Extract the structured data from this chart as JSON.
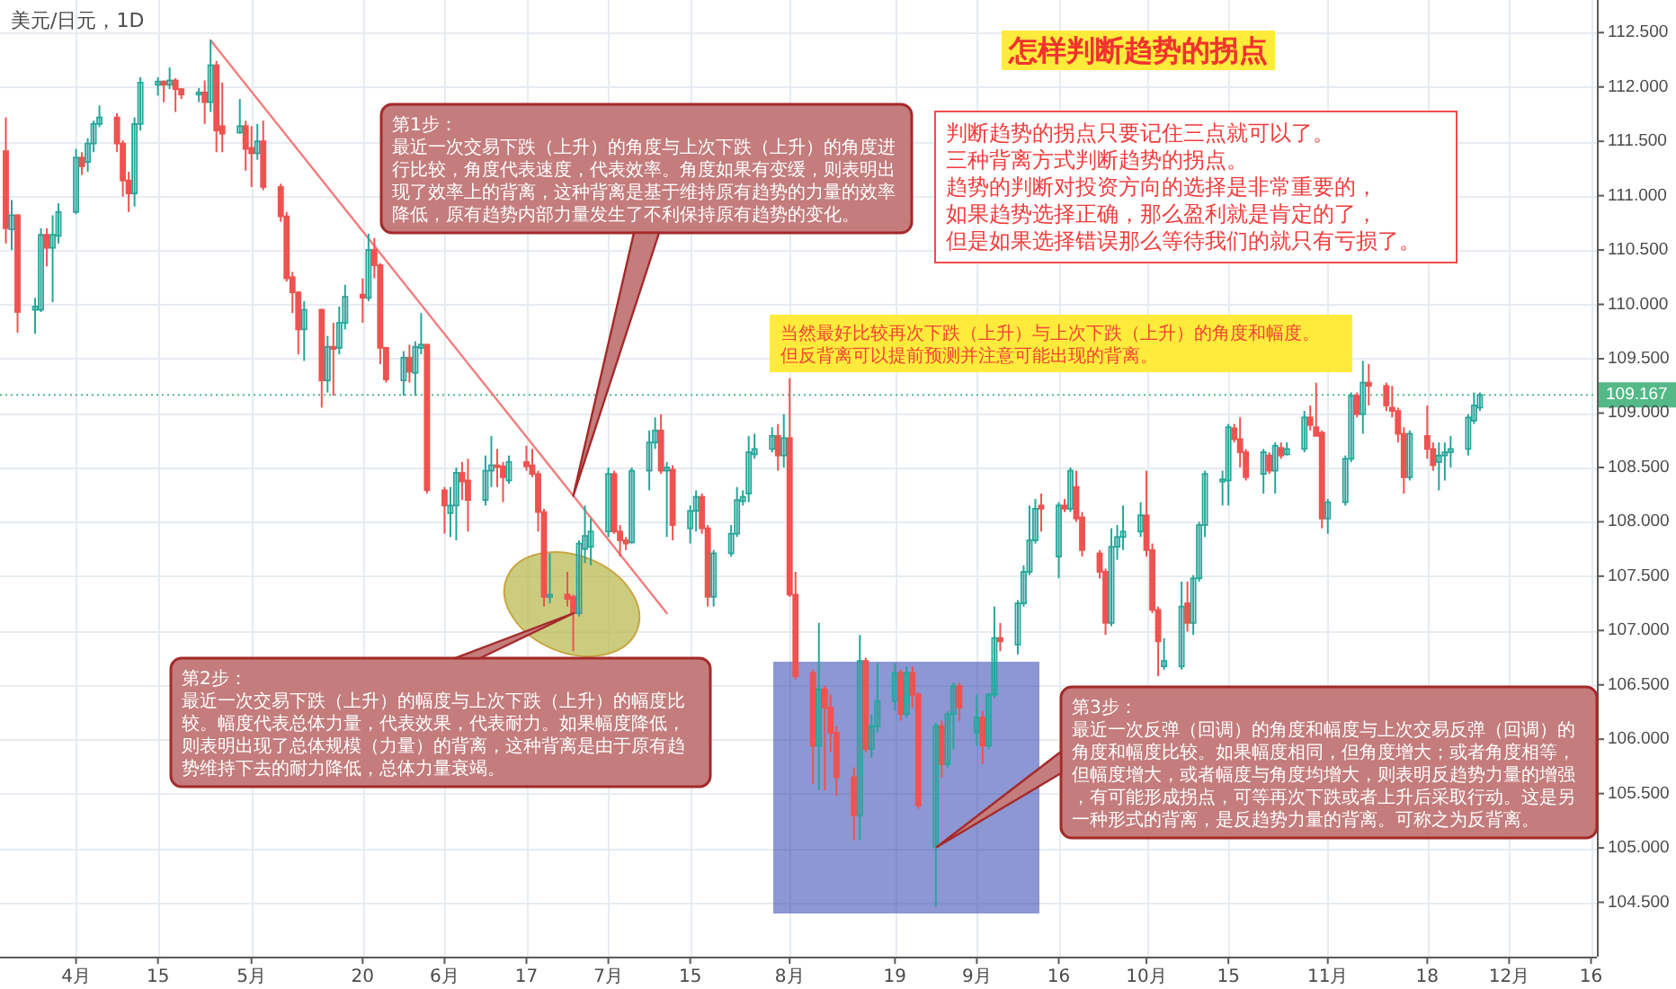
{
  "chart_data": {
    "type": "candlestick",
    "title": "怎样判断趋势的拐点",
    "subtitle": "美元/日元，1D",
    "x": [
      "--03-20",
      "--03-21",
      "--03-22",
      "--03-25",
      "--03-26",
      "--03-27",
      "--03-28",
      "--03-29",
      "--04-01",
      "--04-02",
      "--04-03",
      "--04-04",
      "--04-05",
      "--04-08",
      "--04-09",
      "--04-10",
      "--04-11",
      "--04-12",
      "--04-15",
      "--04-16",
      "--04-17",
      "--04-18",
      "--04-19",
      "--04-22",
      "--04-23",
      "--04-24",
      "--04-25",
      "--04-26",
      "--04-29",
      "--04-30",
      "--05-01",
      "--05-02",
      "--05-03",
      "--05-06",
      "--05-07",
      "--05-08",
      "--05-09",
      "--05-10",
      "--05-13",
      "--05-14",
      "--05-15",
      "--05-16",
      "--05-17",
      "--05-20",
      "--05-21",
      "--05-22",
      "--05-23",
      "--05-24",
      "--05-27",
      "--05-28",
      "--05-29",
      "--05-30",
      "--05-31",
      "--06-03",
      "--06-04",
      "--06-05",
      "--06-06",
      "--06-07",
      "--06-10",
      "--06-11",
      "--06-12",
      "--06-13",
      "--06-14",
      "--06-17",
      "--06-18",
      "--06-19",
      "--06-20",
      "--06-21",
      "--06-24",
      "--06-25",
      "--06-26",
      "--06-27",
      "--06-28",
      "--07-01",
      "--07-02",
      "--07-03",
      "--07-04",
      "--07-05",
      "--07-08",
      "--07-09",
      "--07-10",
      "--07-11",
      "--07-12",
      "--07-15",
      "--07-16",
      "--07-17",
      "--07-18",
      "--07-19",
      "--07-22",
      "--07-23",
      "--07-24",
      "--07-25",
      "--07-26",
      "--07-29",
      "--07-30",
      "--07-31",
      "--08-01",
      "--08-02",
      "--08-05",
      "--08-06",
      "--08-07",
      "--08-08",
      "--08-09",
      "--08-12",
      "--08-13",
      "--08-14",
      "--08-15",
      "--08-16",
      "--08-19",
      "--08-20",
      "--08-21",
      "--08-22",
      "--08-23",
      "--08-26",
      "--08-27",
      "--08-28",
      "--08-29",
      "--08-30",
      "--09-02",
      "--09-03",
      "--09-04",
      "--09-05",
      "--09-06",
      "--09-09",
      "--09-10",
      "--09-11",
      "--09-12",
      "--09-13",
      "--09-16",
      "--09-17",
      "--09-18",
      "--09-19",
      "--09-20",
      "--09-23",
      "--09-24",
      "--09-25",
      "--09-26",
      "--09-27",
      "--09-30",
      "--10-01",
      "--10-02",
      "--10-03",
      "--10-04",
      "--10-07",
      "--10-08",
      "--10-09",
      "--10-10",
      "--10-11",
      "--10-14",
      "--10-15",
      "--10-16",
      "--10-17",
      "--10-18",
      "--10-21",
      "--10-22",
      "--10-23",
      "--10-24",
      "--10-25",
      "--10-28",
      "--10-29",
      "--10-30",
      "--10-31",
      "--11-01",
      "--11-04",
      "--11-05",
      "--11-06",
      "--11-07",
      "--11-08",
      "--11-11",
      "--11-12",
      "--11-13",
      "--11-14",
      "--11-15",
      "--11-18",
      "--11-19",
      "--11-20",
      "--11-21",
      "--11-22",
      "--11-25",
      "--11-26",
      "--11-27"
    ],
    "ohlc": [
      [
        111.41,
        111.72,
        110.56,
        110.7
      ],
      [
        110.69,
        110.96,
        110.5,
        110.82
      ],
      [
        110.82,
        110.83,
        109.74,
        109.93
      ],
      [
        109.95,
        110.06,
        109.73,
        109.98
      ],
      [
        109.95,
        110.7,
        109.93,
        110.64
      ],
      [
        110.64,
        110.7,
        110.35,
        110.52
      ],
      [
        110.52,
        110.82,
        110.02,
        110.64
      ],
      [
        110.63,
        110.93,
        110.56,
        110.85
      ],
      [
        110.85,
        111.43,
        110.83,
        111.35
      ],
      [
        111.35,
        111.4,
        111.19,
        111.27
      ],
      [
        111.31,
        111.53,
        111.22,
        111.48
      ],
      [
        111.48,
        111.69,
        111.4,
        111.66
      ],
      [
        111.66,
        111.83,
        111.63,
        111.72
      ],
      [
        111.72,
        111.76,
        111.4,
        111.48
      ],
      [
        111.48,
        111.51,
        110.99,
        111.14
      ],
      [
        111.14,
        111.22,
        110.85,
        111.02
      ],
      [
        111.02,
        111.72,
        110.9,
        111.66
      ],
      [
        111.66,
        112.09,
        111.6,
        112.04
      ],
      [
        112.02,
        112.09,
        111.92,
        112.05
      ],
      [
        112.05,
        112.06,
        111.86,
        112.02
      ],
      [
        112.02,
        112.18,
        111.98,
        112.06
      ],
      [
        112.06,
        112.08,
        111.77,
        111.98
      ],
      [
        111.98,
        111.99,
        111.89,
        111.93
      ],
      [
        111.93,
        111.99,
        111.86,
        111.95
      ],
      [
        111.95,
        112.06,
        111.66,
        111.86
      ],
      [
        111.86,
        112.43,
        111.77,
        112.2
      ],
      [
        112.2,
        112.24,
        111.4,
        111.6
      ],
      [
        111.64,
        112.04,
        111.4,
        111.57
      ],
      [
        111.58,
        111.89,
        111.57,
        111.64
      ],
      [
        111.64,
        111.69,
        111.23,
        111.43
      ],
      [
        111.44,
        111.64,
        111.08,
        111.39
      ],
      [
        111.39,
        111.66,
        111.33,
        111.5
      ],
      [
        111.5,
        111.69,
        111.05,
        111.08
      ],
      [
        111.08,
        111.11,
        110.76,
        110.81
      ],
      [
        110.81,
        110.85,
        110.21,
        110.24
      ],
      [
        110.25,
        110.3,
        109.92,
        110.11
      ],
      [
        110.11,
        110.12,
        109.54,
        109.77
      ],
      [
        109.77,
        110.03,
        109.48,
        109.95
      ],
      [
        109.95,
        109.96,
        109.05,
        109.3
      ],
      [
        109.3,
        109.71,
        109.19,
        109.61
      ],
      [
        109.61,
        109.83,
        109.16,
        109.59
      ],
      [
        109.6,
        109.98,
        109.54,
        109.83
      ],
      [
        109.83,
        110.18,
        109.77,
        110.07
      ],
      [
        110.09,
        110.24,
        109.83,
        110.06
      ],
      [
        110.06,
        110.65,
        110.03,
        110.5
      ],
      [
        110.5,
        110.61,
        110.24,
        110.36
      ],
      [
        110.36,
        110.38,
        109.45,
        109.6
      ],
      [
        109.6,
        109.61,
        109.28,
        109.31
      ],
      [
        109.3,
        109.57,
        109.16,
        109.51
      ],
      [
        109.51,
        109.63,
        109.28,
        109.38
      ],
      [
        109.37,
        109.66,
        109.16,
        109.61
      ],
      [
        109.6,
        109.92,
        109.54,
        109.63
      ],
      [
        109.63,
        109.63,
        108.26,
        108.29
      ],
      [
        108.29,
        108.32,
        107.89,
        108.15
      ],
      [
        108.08,
        108.32,
        107.86,
        108.15
      ],
      [
        108.15,
        108.5,
        107.83,
        108.45
      ],
      [
        108.45,
        108.55,
        108.2,
        108.37
      ],
      [
        108.38,
        108.58,
        107.91,
        108.2
      ],
      [
        108.2,
        108.61,
        108.15,
        108.47
      ],
      [
        108.47,
        108.79,
        108.32,
        108.52
      ],
      [
        108.52,
        108.67,
        108.32,
        108.51
      ],
      [
        108.51,
        108.55,
        108.18,
        108.41
      ],
      [
        108.38,
        108.61,
        108.35,
        108.55
      ],
      [
        108.55,
        108.7,
        108.47,
        108.51
      ],
      [
        108.52,
        108.67,
        108.41,
        108.44
      ],
      [
        108.44,
        108.47,
        107.91,
        108.09
      ],
      [
        108.09,
        108.12,
        107.22,
        107.31
      ],
      [
        107.31,
        107.71,
        107.25,
        107.33
      ],
      [
        107.33,
        107.54,
        107.22,
        107.29
      ],
      [
        107.31,
        107.33,
        106.81,
        107.16
      ],
      [
        107.16,
        107.83,
        107.13,
        107.8
      ],
      [
        107.75,
        108.15,
        107.62,
        107.87
      ],
      [
        107.77,
        108.03,
        107.6,
        107.91
      ],
      [
        107.91,
        108.5,
        107.86,
        108.44
      ],
      [
        108.44,
        108.47,
        107.89,
        107.91
      ],
      [
        107.91,
        107.97,
        107.68,
        107.83
      ],
      [
        107.83,
        107.86,
        107.74,
        107.8
      ],
      [
        107.81,
        108.5,
        107.8,
        108.47
      ],
      [
        108.47,
        108.84,
        108.29,
        108.73
      ],
      [
        108.73,
        108.96,
        108.67,
        108.84
      ],
      [
        108.84,
        108.99,
        108.44,
        108.47
      ],
      [
        108.47,
        108.55,
        107.86,
        108.5
      ],
      [
        108.48,
        108.52,
        107.83,
        107.97
      ],
      [
        107.94,
        108.15,
        107.8,
        108.1
      ],
      [
        108.1,
        108.29,
        107.91,
        108.23
      ],
      [
        108.23,
        108.26,
        107.89,
        107.94
      ],
      [
        107.94,
        107.97,
        107.22,
        107.31
      ],
      [
        107.31,
        107.74,
        107.22,
        107.71
      ],
      [
        107.71,
        107.97,
        107.68,
        107.89
      ],
      [
        107.89,
        108.32,
        107.86,
        108.2
      ],
      [
        108.19,
        108.29,
        108.15,
        108.23
      ],
      [
        108.26,
        108.79,
        108.18,
        108.64
      ],
      [
        108.62,
        108.81,
        108.58,
        108.67
      ],
      [
        108.67,
        108.87,
        108.64,
        108.79
      ],
      [
        108.79,
        108.9,
        108.47,
        108.61
      ],
      [
        108.61,
        108.99,
        108.5,
        108.77
      ],
      [
        108.77,
        109.32,
        107.31,
        107.33
      ],
      [
        107.33,
        107.54,
        106.55,
        106.58
      ],
      [
        106.61,
        106.64,
        105.59,
        105.94
      ],
      [
        105.94,
        107.07,
        105.53,
        106.46
      ],
      [
        106.46,
        106.49,
        105.53,
        106.29
      ],
      [
        106.29,
        106.41,
        105.88,
        106.06
      ],
      [
        106.06,
        106.12,
        105.48,
        105.65
      ],
      [
        105.65,
        105.74,
        105.07,
        105.3
      ],
      [
        105.3,
        106.96,
        105.07,
        106.72
      ],
      [
        106.72,
        106.75,
        105.88,
        105.91
      ],
      [
        105.91,
        106.23,
        105.83,
        106.12
      ],
      [
        106.12,
        106.7,
        106.06,
        106.35
      ],
      [
        106.35,
        106.7,
        106.26,
        106.61
      ],
      [
        106.61,
        106.64,
        106.17,
        106.23
      ],
      [
        106.23,
        106.67,
        106.2,
        106.61
      ],
      [
        106.61,
        106.67,
        106.29,
        106.41
      ],
      [
        106.41,
        106.43,
        105.36,
        105.39
      ],
      [
        105.01,
        106.15,
        104.46,
        106.12
      ],
      [
        106.12,
        106.17,
        105.65,
        105.77
      ],
      [
        105.77,
        106.26,
        105.74,
        106.23
      ],
      [
        106.23,
        106.52,
        105.91,
        106.49
      ],
      [
        106.49,
        106.52,
        106.17,
        106.29
      ],
      [
        106.06,
        106.41,
        105.94,
        106.2
      ],
      [
        106.2,
        106.26,
        105.77,
        105.94
      ],
      [
        105.94,
        106.43,
        105.91,
        106.41
      ],
      [
        106.41,
        107.22,
        106.38,
        106.93
      ],
      [
        106.93,
        107.07,
        106.81,
        106.9
      ],
      [
        106.87,
        107.28,
        106.78,
        107.25
      ],
      [
        107.25,
        107.6,
        107.22,
        107.54
      ],
      [
        107.54,
        108.15,
        107.51,
        107.83
      ],
      [
        107.83,
        108.21,
        107.8,
        108.12
      ],
      [
        108.15,
        108.26,
        107.91,
        108.12
      ],
      [
        107.68,
        108.18,
        107.48,
        108.15
      ],
      [
        108.15,
        108.21,
        108.09,
        108.12
      ],
      [
        108.12,
        108.5,
        108.09,
        108.47
      ],
      [
        108.32,
        108.47,
        108.0,
        108.03
      ],
      [
        108.04,
        108.09,
        107.68,
        107.74
      ],
      [
        107.71,
        107.74,
        107.48,
        107.54
      ],
      [
        107.54,
        107.57,
        106.96,
        107.07
      ],
      [
        107.07,
        107.94,
        107.04,
        107.77
      ],
      [
        107.77,
        107.97,
        107.65,
        107.86
      ],
      [
        107.86,
        108.15,
        107.74,
        107.91
      ],
      [
        107.91,
        108.18,
        107.86,
        108.06
      ],
      [
        108.06,
        108.47,
        107.68,
        107.74
      ],
      [
        107.74,
        107.8,
        107.16,
        107.19
      ],
      [
        107.19,
        107.22,
        106.58,
        106.9
      ],
      [
        106.67,
        106.93,
        106.64,
        106.72
      ],
      [
        106.67,
        107.45,
        106.64,
        107.22
      ],
      [
        107.25,
        107.45,
        106.99,
        107.07
      ],
      [
        107.07,
        107.51,
        106.96,
        107.48
      ],
      [
        107.48,
        108.0,
        107.45,
        107.97
      ],
      [
        107.97,
        108.47,
        107.86,
        108.44
      ],
      [
        108.37,
        108.47,
        108.15,
        108.39
      ],
      [
        108.38,
        108.9,
        108.15,
        108.87
      ],
      [
        108.86,
        108.9,
        108.73,
        108.76
      ],
      [
        108.76,
        108.96,
        108.5,
        108.64
      ],
      [
        108.64,
        108.67,
        108.38,
        108.41
      ],
      [
        108.44,
        108.67,
        108.26,
        108.64
      ],
      [
        108.61,
        108.64,
        108.44,
        108.47
      ],
      [
        108.47,
        108.73,
        108.26,
        108.7
      ],
      [
        108.68,
        108.73,
        108.58,
        108.61
      ],
      [
        108.62,
        108.73,
        108.61,
        108.67
      ],
      [
        108.67,
        109.02,
        108.64,
        108.96
      ],
      [
        108.96,
        109.07,
        108.84,
        108.89
      ],
      [
        108.87,
        109.28,
        108.79,
        108.79
      ],
      [
        108.82,
        108.84,
        107.94,
        108.03
      ],
      [
        108.03,
        108.21,
        107.89,
        108.18
      ],
      [
        108.18,
        108.61,
        108.15,
        108.58
      ],
      [
        108.58,
        109.19,
        108.55,
        109.16
      ],
      [
        109.16,
        109.19,
        108.96,
        108.99
      ],
      [
        108.99,
        109.48,
        108.81,
        109.28
      ],
      [
        109.28,
        109.45,
        109.07,
        109.25
      ],
      [
        109.25,
        109.28,
        109.02,
        109.07
      ],
      [
        109.05,
        109.25,
        108.96,
        109.02
      ],
      [
        109.02,
        109.05,
        108.73,
        108.81
      ],
      [
        108.81,
        108.87,
        108.26,
        108.41
      ],
      [
        108.41,
        108.84,
        108.38,
        108.81
      ],
      [
        108.79,
        109.07,
        108.58,
        108.67
      ],
      [
        108.67,
        108.73,
        108.47,
        108.52
      ],
      [
        108.55,
        108.73,
        108.29,
        108.61
      ],
      [
        108.61,
        108.73,
        108.38,
        108.64
      ],
      [
        108.64,
        108.79,
        108.5,
        108.67
      ],
      [
        108.67,
        108.99,
        108.61,
        108.96
      ],
      [
        108.93,
        109.19,
        108.9,
        109.07
      ],
      [
        109.05,
        109.19,
        109.02,
        109.167
      ]
    ],
    "colors": [
      "#ef5350",
      "#26a69a",
      "#ef5350",
      "#26a69a",
      "#26a69a",
      "#ef5350",
      "#26a69a",
      "#26a69a",
      "#26a69a",
      "#ef5350",
      "#26a69a",
      "#26a69a",
      "#26a69a",
      "#ef5350",
      "#ef5350",
      "#ef5350",
      "#26a69a",
      "#26a69a",
      "#26a69a",
      "#ef5350",
      "#26a69a",
      "#ef5350",
      "#ef5350",
      "#26a69a",
      "#ef5350",
      "#26a69a",
      "#ef5350",
      "#ef5350",
      "#26a69a",
      "#ef5350",
      "#ef5350",
      "#26a69a",
      "#ef5350",
      "#ef5350",
      "#ef5350",
      "#ef5350",
      "#ef5350",
      "#26a69a",
      "#ef5350",
      "#26a69a",
      "#ef5350",
      "#26a69a",
      "#26a69a",
      "#ef5350",
      "#26a69a",
      "#ef5350",
      "#ef5350",
      "#ef5350",
      "#26a69a",
      "#ef5350",
      "#26a69a",
      "#26a69a",
      "#ef5350",
      "#ef5350",
      "#26a69a",
      "#26a69a",
      "#ef5350",
      "#ef5350",
      "#26a69a",
      "#26a69a",
      "#ef5350",
      "#ef5350",
      "#26a69a",
      "#ef5350",
      "#ef5350",
      "#ef5350",
      "#ef5350",
      "#26a69a",
      "#ef5350",
      "#ef5350",
      "#26a69a",
      "#26a69a",
      "#26a69a",
      "#26a69a",
      "#ef5350",
      "#ef5350",
      "#ef5350",
      "#26a69a",
      "#26a69a",
      "#26a69a",
      "#ef5350",
      "#26a69a",
      "#ef5350",
      "#26a69a",
      "#26a69a",
      "#ef5350",
      "#ef5350",
      "#26a69a",
      "#26a69a",
      "#26a69a",
      "#26a69a",
      "#26a69a",
      "#26a69a",
      "#26a69a",
      "#ef5350",
      "#26a69a",
      "#ef5350",
      "#ef5350",
      "#ef5350",
      "#26a69a",
      "#ef5350",
      "#ef5350",
      "#ef5350",
      "#ef5350",
      "#26a69a",
      "#ef5350",
      "#26a69a",
      "#26a69a",
      "#26a69a",
      "#ef5350",
      "#26a69a",
      "#ef5350",
      "#ef5350",
      "#26a69a",
      "#ef5350",
      "#26a69a",
      "#26a69a",
      "#ef5350",
      "#26a69a",
      "#ef5350",
      "#26a69a",
      "#26a69a",
      "#ef5350",
      "#26a69a",
      "#26a69a",
      "#26a69a",
      "#26a69a",
      "#ef5350",
      "#26a69a",
      "#ef5350",
      "#26a69a",
      "#ef5350",
      "#ef5350",
      "#ef5350",
      "#ef5350",
      "#26a69a",
      "#26a69a",
      "#26a69a",
      "#26a69a",
      "#ef5350",
      "#ef5350",
      "#ef5350",
      "#26a69a",
      "#26a69a",
      "#ef5350",
      "#26a69a",
      "#26a69a",
      "#26a69a",
      "#26a69a",
      "#26a69a",
      "#ef5350",
      "#ef5350",
      "#ef5350",
      "#26a69a",
      "#ef5350",
      "#26a69a",
      "#ef5350",
      "#26a69a",
      "#26a69a",
      "#ef5350",
      "#ef5350",
      "#ef5350",
      "#26a69a",
      "#26a69a",
      "#26a69a",
      "#ef5350",
      "#26a69a",
      "#ef5350",
      "#ef5350",
      "#ef5350",
      "#ef5350",
      "#ef5350",
      "#26a69a",
      "#ef5350",
      "#ef5350",
      "#26a69a",
      "#26a69a",
      "#26a69a",
      "#26a69a",
      "#26a69a",
      "#26a69a"
    ],
    "series": [
      {
        "type": "line",
        "x": [
          "--04-24",
          "--07-11"
        ],
        "values": [
          112.43,
          107.16
        ],
        "color": "#f47c7c"
      }
    ],
    "xlim": [
      "--03-19",
      "--12-17"
    ],
    "xticks": [
      {
        "value": "--04-01",
        "label": "4月"
      },
      {
        "value": "--04-15",
        "label": "15"
      },
      {
        "value": "--05-01",
        "label": "5月"
      },
      {
        "value": "--05-20",
        "label": "20"
      },
      {
        "value": "--06-03",
        "label": "6月"
      },
      {
        "value": "--06-17",
        "label": "17"
      },
      {
        "value": "--07-01",
        "label": "7月"
      },
      {
        "value": "--07-15",
        "label": "15"
      },
      {
        "value": "--08-01",
        "label": "8月"
      },
      {
        "value": "--08-19",
        "label": "19"
      },
      {
        "value": "--09-02",
        "label": "9月"
      },
      {
        "value": "--09-16",
        "label": "16"
      },
      {
        "value": "--10-01",
        "label": "10月"
      },
      {
        "value": "--10-15",
        "label": "15"
      },
      {
        "value": "--11-01",
        "label": "11月"
      },
      {
        "value": "--11-18",
        "label": "18"
      },
      {
        "value": "--12-02",
        "label": "12月"
      },
      {
        "value": "--12-16",
        "label": "16"
      }
    ],
    "ylim": [
      104.0,
      112.8
    ],
    "yticks": [
      {
        "value": 104.5,
        "label": "104.500"
      },
      {
        "value": 105.0,
        "label": "105.000"
      },
      {
        "value": 105.5,
        "label": "105.500"
      },
      {
        "value": 106.0,
        "label": "106.000"
      },
      {
        "value": 106.5,
        "label": "106.500"
      },
      {
        "value": 107.0,
        "label": "107.000"
      },
      {
        "value": 107.5,
        "label": "107.500"
      },
      {
        "value": 108.0,
        "label": "108.000"
      },
      {
        "value": 108.5,
        "label": "108.500"
      },
      {
        "value": 109.0,
        "label": "109.000"
      },
      {
        "value": 109.5,
        "label": "109.500"
      },
      {
        "value": 110.0,
        "label": "110.000"
      },
      {
        "value": 110.5,
        "label": "110.500"
      },
      {
        "value": 111.0,
        "label": "111.000"
      },
      {
        "value": 111.5,
        "label": "111.500"
      },
      {
        "value": 112.0,
        "label": "112.000"
      },
      {
        "value": 112.5,
        "label": "112.500"
      }
    ],
    "grid": true,
    "ref_lines": [
      {
        "axis": "y",
        "value": 109.167,
        "label": "109.167",
        "color": "#53b987",
        "line_style": "dotted"
      }
    ],
    "annotations": [
      "判断趋势的拐点只要记住三点就可以了。",
      "三种背离方式判断趋势的拐点。",
      "趋势的判断对投资方向的选择是非常重要的，",
      "如果趋势选择正确，那么盈利就是肯定的了，",
      "但是如果选择错误那么等待我们的就只有亏损了。",
      "当然最好比较再次下跌（上升）与上次下跌（上升）的角度和幅度。",
      "但反背离可以提前预测并注意可能出现的背离。",
      "第1步：",
      {
        "text": "最近一次交易下跌（上升）的角度与上次下跌（上升）的角度进行比较，角度代表速度，代表效率。角度如果有变缓，则表明出现了效率上的背离，这种背离是基于维持原有趋势的力量的效率降低，原有趋势内部力量发生了不利保持原有趋势的变化。",
        "x": "--06-25",
        "y": 108.24
      },
      "第2步：",
      "最近一次交易下跌（上升）的幅度与上次下跌（上升）的幅度比较。幅度代表总体力量，代表效果，代表耐力。如果幅度降低，则表明出现了总体规模（力量）的背离，这种背离是由于原有趋势维持下去的耐力降低，总体力量衰竭。",
      "第3步：",
      "最近一次反弹（回调）的角度和幅度与上次交易反弹（回调）的角度和幅度比较。如果幅度相同，但角度增大；或者角度相等，但幅度增大，或者幅度与角度均增大，则表明反趋势力量的增强，有可能形成拐点，可等再次下跌或者上升后采取行动。这是另一种形式的背离，是反趋势力量的背离。可称之为反背离。"
    ]
  }
}
